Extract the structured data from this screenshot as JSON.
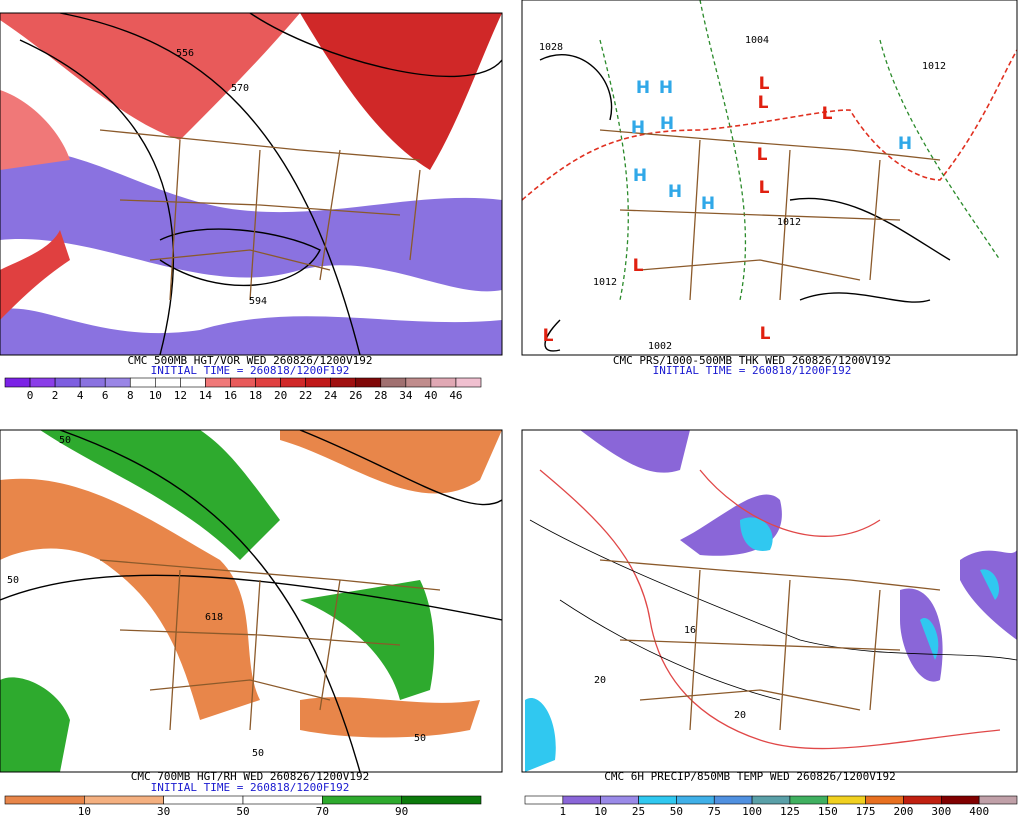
{
  "panels": [
    {
      "title": "CMC 500MB HGT/VOR WED 260826/1200V192",
      "initial_time": "INITIAL TIME = 260818/1200F192",
      "contour_labels": [
        "556",
        "570",
        "594"
      ],
      "legend": {
        "labels": [
          0,
          2,
          4,
          6,
          8,
          10,
          12,
          14,
          16,
          18,
          20,
          22,
          24,
          26,
          28,
          34,
          40,
          46
        ],
        "colors": [
          "#7b22e6",
          "#8a3ee8",
          "#7d5ee0",
          "#8a72e0",
          "#9a86e6",
          "#ffffff",
          "#ffffff",
          "#ffffff",
          "#f07878",
          "#e85a5a",
          "#e04040",
          "#d02828",
          "#c01818",
          "#a01010",
          "#800808",
          "#a07070",
          "#c08c8c",
          "#e0a8b4",
          "#f0c0d0"
        ]
      }
    },
    {
      "title": "CMC PRS/1000-500MB THK WED 260826/1200V192",
      "initial_time": "INITIAL TIME = 260818/1200F192",
      "contour_labels": [
        "1028",
        "1004",
        "1012",
        "1012",
        "1012",
        "1002"
      ],
      "centers": [
        "H",
        "H",
        "H",
        "H",
        "H",
        "H",
        "H",
        "H",
        "L",
        "L",
        "L",
        "L",
        "L",
        "L",
        "L",
        "L"
      ]
    },
    {
      "title": "CMC 700MB HGT/RH WED 260826/1200V192",
      "initial_time": "INITIAL TIME = 260818/1200F192",
      "contour_labels": [
        "50",
        "50",
        "618",
        "50",
        "50"
      ],
      "legend": {
        "labels": [
          10,
          30,
          50,
          70,
          90
        ],
        "colors": [
          "#e8864a",
          "#f4b080",
          "#ffffff",
          "#ffffff",
          "#2eaa2e",
          "#0c7a0c"
        ]
      }
    },
    {
      "title": "CMC 6H PRECIP/850MB TEMP WED 260826/1200V192",
      "contour_labels": [
        "20",
        "20",
        "16"
      ],
      "legend": {
        "labels": [
          1,
          10,
          25,
          50,
          75,
          100,
          125,
          150,
          175,
          200,
          300,
          400
        ],
        "colors": [
          "#ffffff",
          "#8a66d8",
          "#9a8ae8",
          "#30c8f0",
          "#40b0e8",
          "#5090e0",
          "#5aa0a8",
          "#40b060",
          "#f0d020",
          "#e87020",
          "#c02010",
          "#800000",
          "#c0a0a8"
        ]
      }
    }
  ]
}
